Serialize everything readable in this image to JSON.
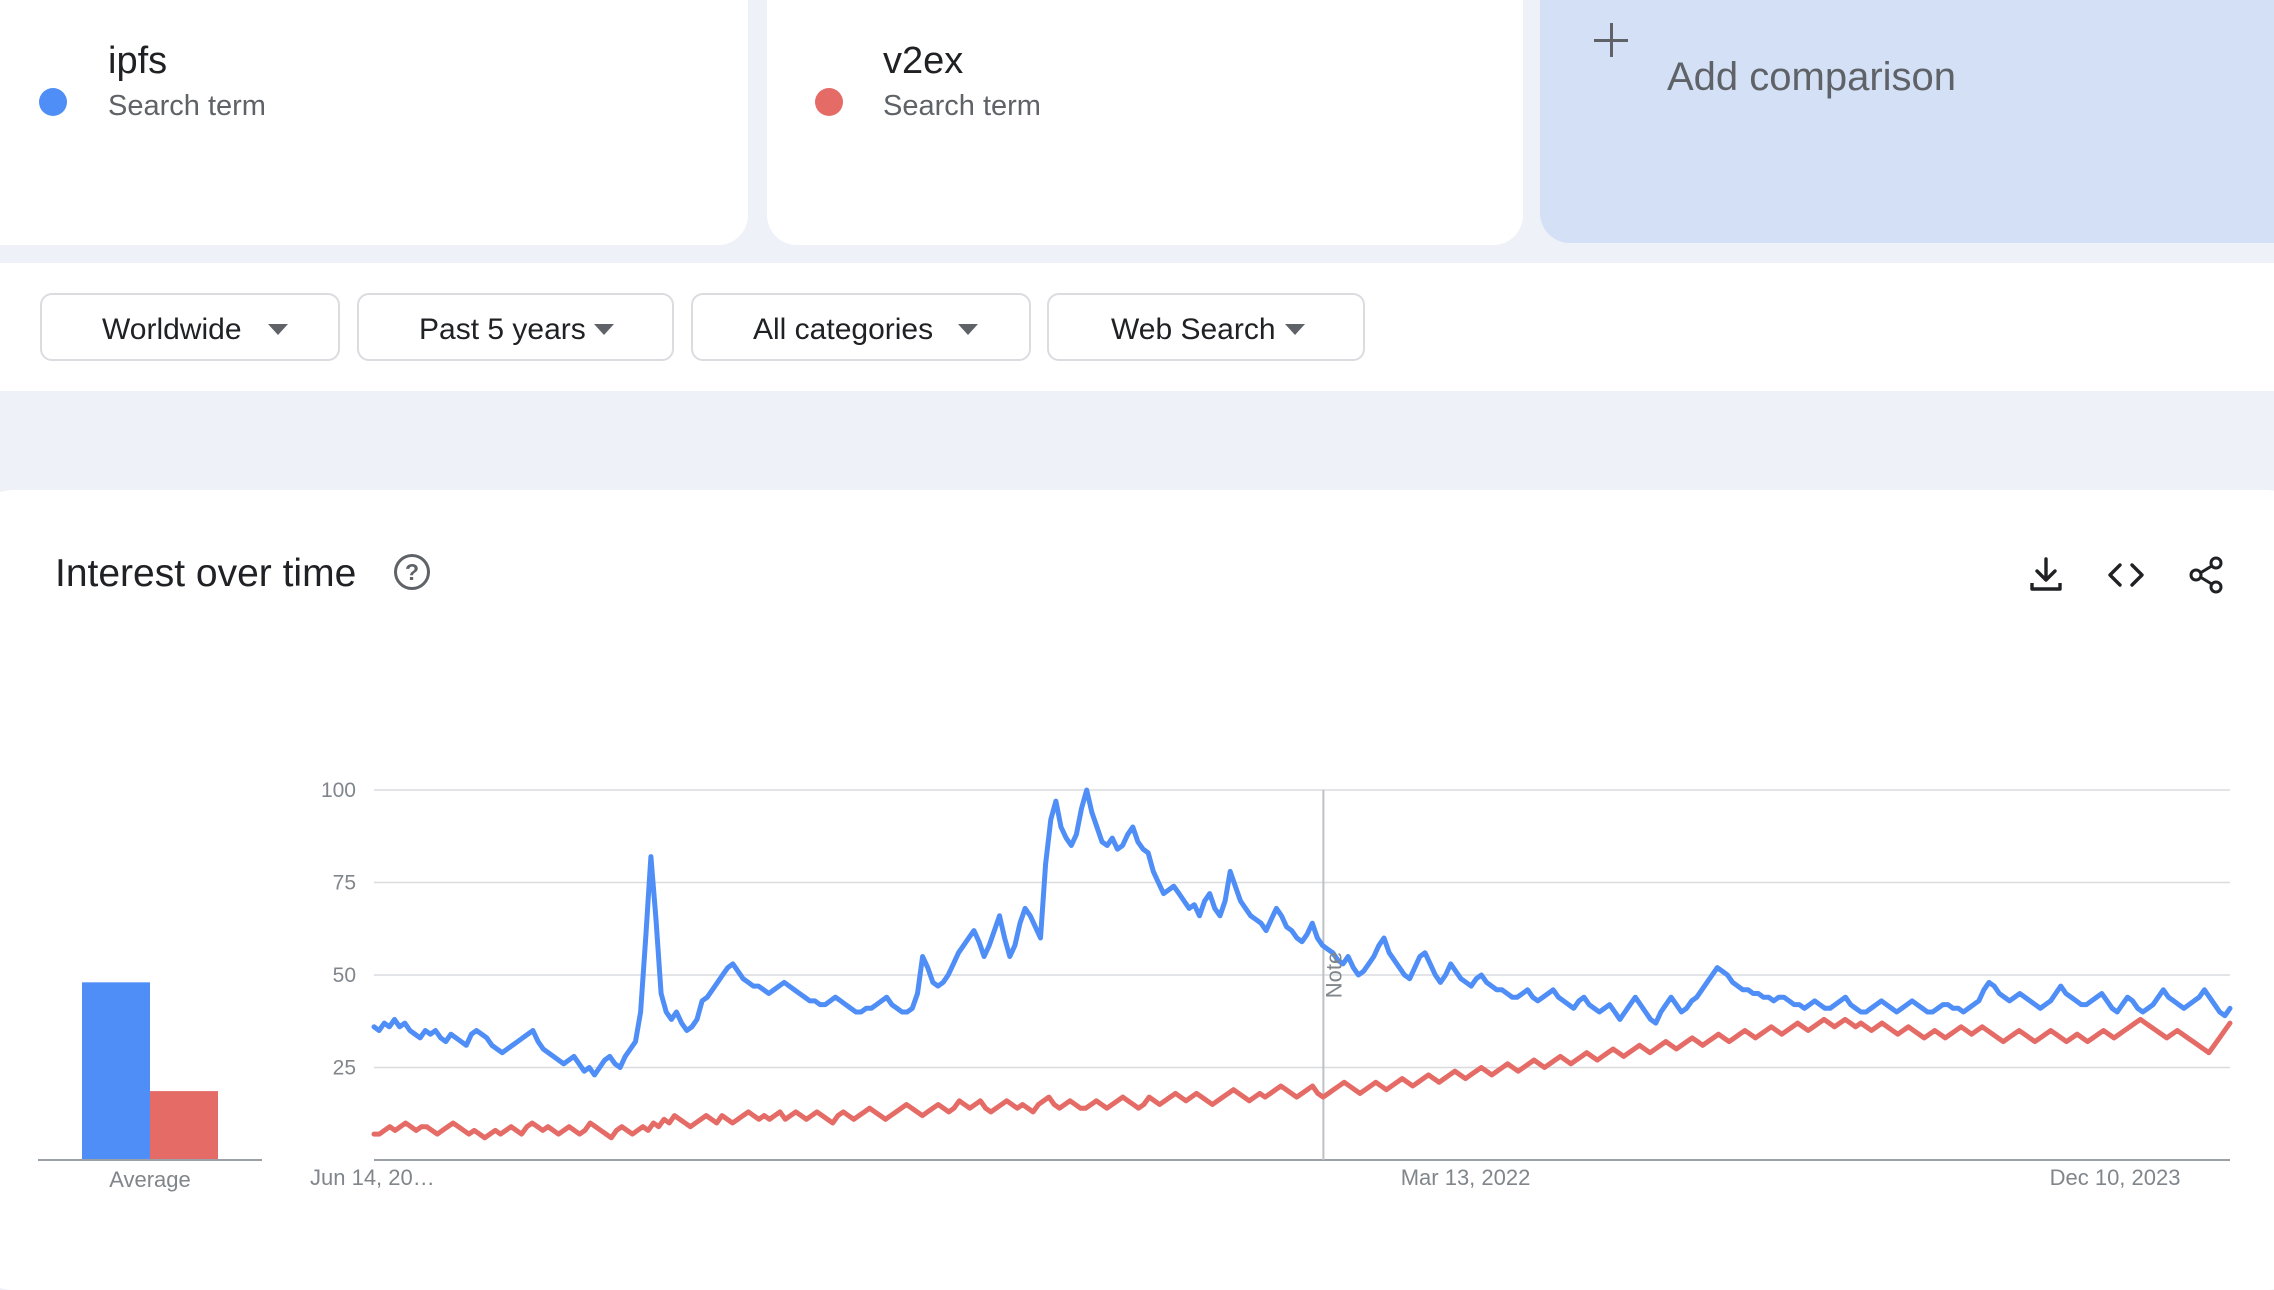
{
  "terms": [
    {
      "name": "ipfs",
      "subtitle": "Search term",
      "color": "#4f8ef6"
    },
    {
      "name": "v2ex",
      "subtitle": "Search term",
      "color": "#e56b66"
    }
  ],
  "add_comparison": "Add comparison",
  "filters": [
    {
      "label": "Worldwide"
    },
    {
      "label": "Past 5 years"
    },
    {
      "label": "All categories"
    },
    {
      "label": "Web Search"
    }
  ],
  "section": {
    "title": "Interest over time",
    "icons": [
      "help-icon",
      "download-icon",
      "embed-icon",
      "share-icon"
    ]
  },
  "chart_data": {
    "type": "line",
    "title": "",
    "xlabel": "",
    "ylabel": "",
    "ylim": [
      0,
      100
    ],
    "yticks": [
      25,
      50,
      75,
      100
    ],
    "grid": true,
    "x_start": "2019-06-14",
    "x_end": "2024-06-09",
    "interval_days": 7,
    "xtick_labels": [
      {
        "date": "2019-06-14",
        "label": "Jun 14, 20…"
      },
      {
        "date": "2022-03-13",
        "label": "Mar 13, 2022"
      },
      {
        "date": "2023-12-10",
        "label": "Dec 10, 2023"
      }
    ],
    "annotation": {
      "date": "2022-01-01",
      "label": "Note"
    },
    "average_label": "Average",
    "averages": {
      "ipfs": 49,
      "v2ex": 19
    },
    "series": [
      {
        "name": "ipfs",
        "color": "#4f8ef6",
        "values": [
          36,
          35,
          37,
          36,
          38,
          36,
          37,
          35,
          34,
          33,
          35,
          34,
          35,
          33,
          32,
          34,
          33,
          32,
          31,
          34,
          35,
          34,
          33,
          31,
          30,
          29,
          30,
          31,
          32,
          33,
          34,
          35,
          32,
          30,
          29,
          28,
          27,
          26,
          27,
          28,
          26,
          24,
          25,
          23,
          25,
          27,
          28,
          26,
          25,
          28,
          30,
          32,
          40,
          60,
          82,
          65,
          45,
          40,
          38,
          40,
          37,
          35,
          36,
          38,
          43,
          44,
          46,
          48,
          50,
          52,
          53,
          51,
          49,
          48,
          47,
          47,
          46,
          45,
          46,
          47,
          48,
          47,
          46,
          45,
          44,
          43,
          43,
          42,
          42,
          43,
          44,
          43,
          42,
          41,
          40,
          40,
          41,
          41,
          42,
          43,
          44,
          42,
          41,
          40,
          40,
          41,
          45,
          55,
          52,
          48,
          47,
          48,
          50,
          53,
          56,
          58,
          60,
          62,
          59,
          55,
          58,
          62,
          66,
          60,
          55,
          58,
          64,
          68,
          66,
          63,
          60,
          80,
          92,
          97,
          90,
          87,
          85,
          88,
          95,
          100,
          94,
          90,
          86,
          85,
          87,
          84,
          85,
          88,
          90,
          86,
          84,
          83,
          78,
          75,
          72,
          73,
          74,
          72,
          70,
          68,
          69,
          66,
          70,
          72,
          68,
          66,
          70,
          78,
          74,
          70,
          68,
          66,
          65,
          64,
          62,
          65,
          68,
          66,
          63,
          62,
          60,
          59,
          61,
          64,
          60,
          58,
          57,
          56,
          54,
          53,
          55,
          52,
          50,
          51,
          53,
          55,
          58,
          60,
          56,
          54,
          52,
          50,
          49,
          52,
          55,
          56,
          53,
          50,
          48,
          50,
          53,
          51,
          49,
          48,
          47,
          49,
          50,
          48,
          47,
          46,
          46,
          45,
          44,
          44,
          45,
          46,
          44,
          43,
          44,
          45,
          46,
          44,
          43,
          42,
          41,
          43,
          44,
          42,
          41,
          40,
          41,
          42,
          40,
          38,
          40,
          42,
          44,
          42,
          40,
          38,
          37,
          40,
          42,
          44,
          42,
          40,
          41,
          43,
          44,
          46,
          48,
          50,
          52,
          51,
          50,
          48,
          47,
          46,
          46,
          45,
          45,
          44,
          44,
          43,
          44,
          44,
          43,
          42,
          42,
          41,
          42,
          43,
          42,
          41,
          41,
          42,
          43,
          44,
          42,
          41,
          40,
          40,
          41,
          42,
          43,
          42,
          41,
          40,
          41,
          42,
          43,
          42,
          41,
          40,
          40,
          41,
          42,
          42,
          41,
          41,
          40,
          41,
          42,
          43,
          46,
          48,
          47,
          45,
          44,
          43,
          44,
          45,
          44,
          43,
          42,
          41,
          42,
          43,
          45,
          47,
          45,
          44,
          43,
          42,
          42,
          43,
          44,
          45,
          43,
          41,
          40,
          42,
          44,
          43,
          41,
          40,
          41,
          42,
          44,
          46,
          44,
          43,
          42,
          41,
          42,
          43,
          44,
          46,
          44,
          42,
          40,
          39,
          41
        ]
      },
      {
        "name": "v2ex",
        "color": "#e56b66",
        "values": [
          7,
          7,
          8,
          9,
          8,
          9,
          10,
          9,
          8,
          9,
          9,
          8,
          7,
          8,
          9,
          10,
          9,
          8,
          7,
          8,
          7,
          6,
          7,
          8,
          7,
          8,
          9,
          8,
          7,
          9,
          10,
          9,
          8,
          9,
          8,
          7,
          8,
          9,
          8,
          7,
          8,
          10,
          9,
          8,
          7,
          6,
          8,
          9,
          8,
          7,
          8,
          9,
          8,
          10,
          9,
          11,
          10,
          12,
          11,
          10,
          9,
          10,
          11,
          12,
          11,
          10,
          12,
          11,
          10,
          11,
          12,
          13,
          12,
          11,
          12,
          11,
          12,
          13,
          11,
          12,
          13,
          12,
          11,
          12,
          13,
          12,
          11,
          10,
          12,
          13,
          12,
          11,
          12,
          13,
          14,
          13,
          12,
          11,
          12,
          13,
          14,
          15,
          14,
          13,
          12,
          13,
          14,
          15,
          14,
          13,
          14,
          16,
          15,
          14,
          15,
          16,
          14,
          13,
          14,
          15,
          16,
          15,
          14,
          15,
          14,
          13,
          15,
          16,
          17,
          15,
          14,
          15,
          16,
          15,
          14,
          14,
          15,
          16,
          15,
          14,
          15,
          16,
          17,
          16,
          15,
          14,
          15,
          17,
          16,
          15,
          16,
          17,
          18,
          17,
          16,
          17,
          18,
          17,
          16,
          15,
          16,
          17,
          18,
          19,
          18,
          17,
          16,
          17,
          18,
          17,
          18,
          19,
          20,
          19,
          18,
          17,
          18,
          19,
          20,
          18,
          17,
          18,
          19,
          20,
          21,
          20,
          19,
          18,
          19,
          20,
          21,
          20,
          19,
          20,
          21,
          22,
          21,
          20,
          21,
          22,
          23,
          22,
          21,
          22,
          23,
          24,
          23,
          22,
          23,
          24,
          25,
          24,
          23,
          24,
          25,
          26,
          25,
          24,
          25,
          26,
          27,
          26,
          25,
          26,
          27,
          28,
          27,
          26,
          27,
          28,
          29,
          28,
          27,
          28,
          29,
          30,
          29,
          28,
          29,
          30,
          31,
          30,
          29,
          30,
          31,
          32,
          31,
          30,
          31,
          32,
          33,
          32,
          31,
          32,
          33,
          34,
          33,
          32,
          33,
          34,
          35,
          34,
          33,
          34,
          35,
          36,
          35,
          34,
          35,
          36,
          37,
          36,
          35,
          36,
          37,
          38,
          37,
          36,
          37,
          38,
          37,
          36,
          37,
          36,
          35,
          36,
          37,
          36,
          35,
          34,
          35,
          36,
          35,
          34,
          33,
          34,
          35,
          34,
          33,
          34,
          35,
          36,
          35,
          34,
          35,
          36,
          35,
          34,
          33,
          32,
          33,
          34,
          35,
          34,
          33,
          32,
          33,
          34,
          35,
          34,
          33,
          32,
          33,
          34,
          33,
          32,
          33,
          34,
          35,
          34,
          33,
          34,
          35,
          36,
          37,
          38,
          37,
          36,
          35,
          34,
          33,
          34,
          35,
          34,
          33,
          32,
          31,
          30,
          29,
          31,
          33,
          35,
          37
        ]
      }
    ]
  }
}
